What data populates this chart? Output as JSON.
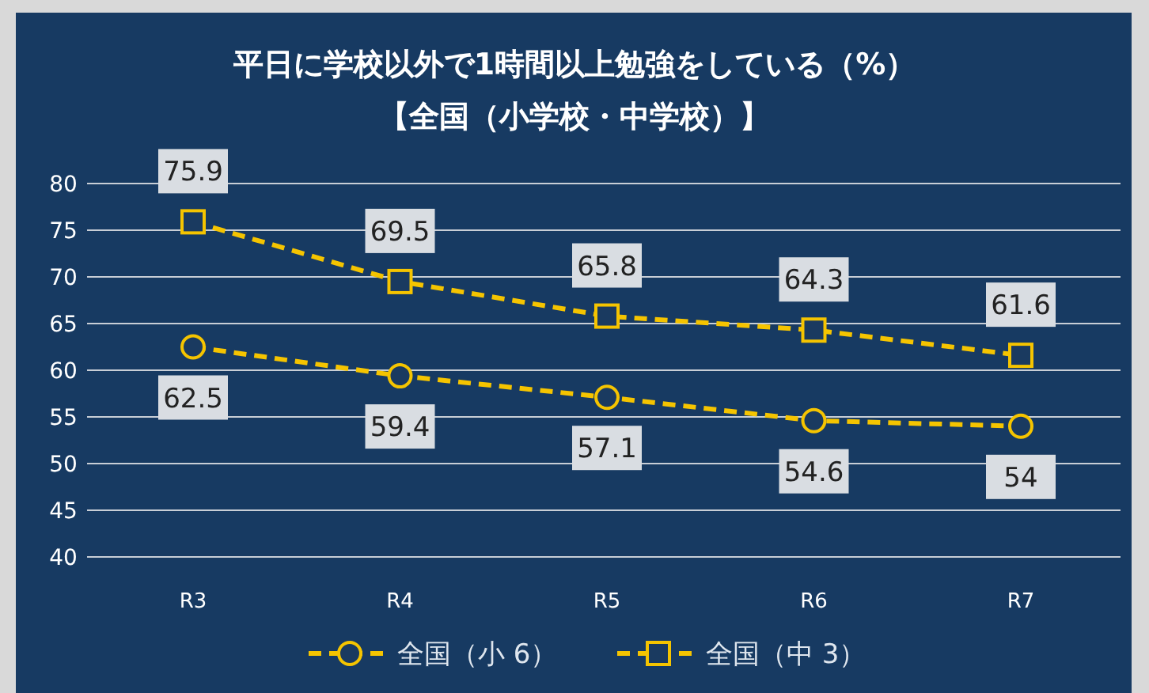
{
  "chart_data": {
    "type": "line",
    "title": "平日に学校以外で1時間以上勉強をしている（%）",
    "subtitle": "【全国（小学校・中学校）】",
    "categories": [
      "R3",
      "R4",
      "R5",
      "R6",
      "R7"
    ],
    "series": [
      {
        "name": "全国（小 6）",
        "color": "#f5c400",
        "values": [
          62.5,
          59.4,
          57.1,
          54.6,
          54
        ],
        "marker": "circle"
      },
      {
        "name": "全国（中 3）",
        "color": "#f5c400",
        "values": [
          75.9,
          69.5,
          65.8,
          64.3,
          61.6
        ],
        "marker": "square"
      }
    ],
    "ylim": [
      40,
      80
    ],
    "yticks": [
      40,
      45,
      50,
      55,
      60,
      65,
      70,
      75,
      80
    ],
    "grid": "y",
    "legend": "bottom",
    "line_style": "dashed",
    "data_labels": true
  }
}
